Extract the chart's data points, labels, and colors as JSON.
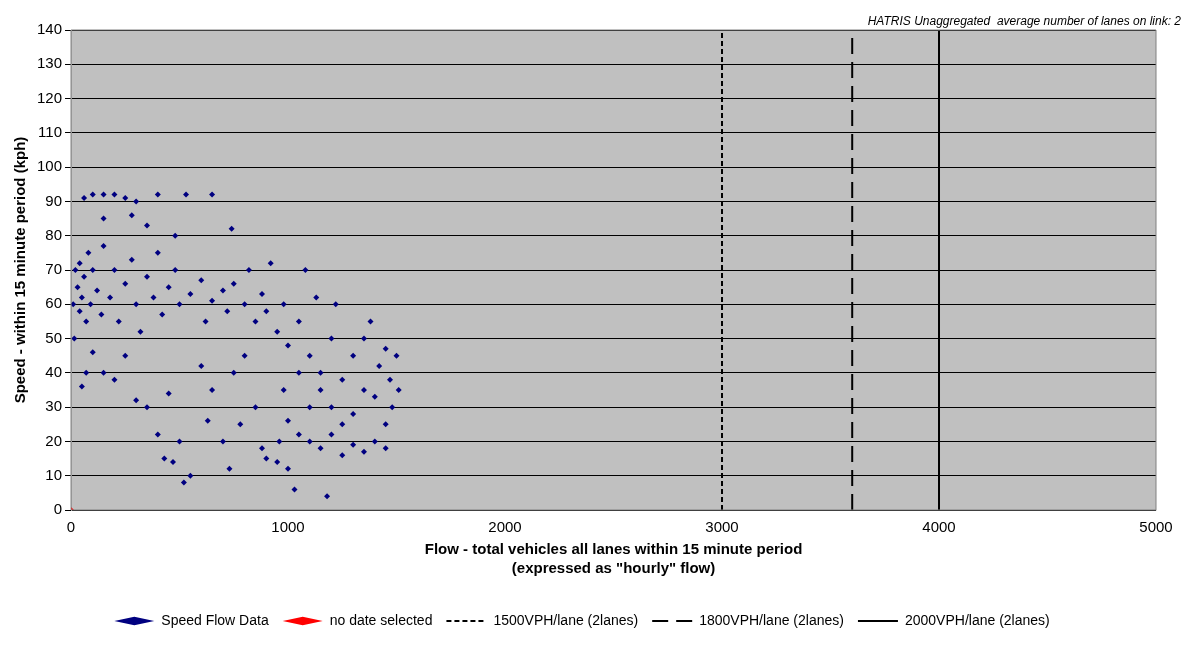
{
  "chart_data": {
    "type": "scatter",
    "xlabel": "Flow - total vehicles all lanes within 15 minute period (expressed as \"hourly\" flow)",
    "ylabel": "Speed - within 15 minute period (kph)",
    "annotations": [
      "HATRIS Unaggregated  average number of lanes on link: 2"
    ],
    "xlim": [
      0,
      5000
    ],
    "xticks": [
      0,
      1000,
      2000,
      3000,
      4000,
      5000
    ],
    "ylim": [
      0,
      140
    ],
    "yticks": [
      0,
      10,
      20,
      30,
      40,
      50,
      60,
      70,
      80,
      90,
      100,
      110,
      120,
      130,
      140
    ],
    "grid": "y",
    "legend": "bottom",
    "series": [
      {
        "name": "Speed Flow Data",
        "marker": "diamond",
        "color": "#000080",
        "x": [
          10,
          20,
          15,
          30,
          40,
          40,
          50,
          60,
          70,
          80,
          90,
          100,
          120,
          140,
          150,
          180,
          200,
          220,
          250,
          280,
          300,
          320,
          350,
          380,
          400,
          420,
          450,
          480,
          500,
          550,
          600,
          620,
          650,
          700,
          720,
          750,
          800,
          820,
          850,
          880,
          900,
          920,
          950,
          980,
          1000,
          1050,
          1080,
          1100,
          1130,
          1150,
          1200,
          1220,
          1250,
          1300,
          1350,
          1380,
          1420,
          1450,
          1470,
          1500,
          1510,
          1480,
          1450,
          1400,
          1350,
          1300,
          1250,
          1200,
          1150,
          1100,
          1050,
          1000,
          980,
          960,
          950,
          1000,
          1030,
          1180,
          1100,
          1200,
          1300,
          1400,
          1050,
          1150,
          1250,
          1350,
          1450,
          60,
          100,
          150,
          200,
          250,
          300,
          400,
          530,
          650,
          740,
          150,
          280,
          350,
          480,
          50,
          70,
          100,
          150,
          200,
          300,
          350,
          400,
          430,
          470,
          500,
          520,
          550,
          630,
          700,
          730,
          780,
          850,
          880,
          900,
          600,
          650,
          800,
          750,
          250,
          450
        ],
        "values": [
          60,
          70,
          50,
          65,
          58,
          72,
          62,
          68,
          55,
          75,
          60,
          70,
          64,
          57,
          77,
          62,
          70,
          55,
          66,
          73,
          60,
          52,
          68,
          62,
          75,
          57,
          65,
          70,
          60,
          63,
          67,
          55,
          61,
          64,
          58,
          66,
          60,
          70,
          55,
          63,
          58,
          72,
          52,
          60,
          48,
          55,
          70,
          45,
          62,
          40,
          50,
          60,
          38,
          45,
          50,
          55,
          42,
          47,
          38,
          45,
          35,
          30,
          25,
          20,
          17,
          19,
          16,
          22,
          18,
          20,
          22,
          26,
          35,
          20,
          14,
          12,
          6,
          4,
          30,
          30,
          28,
          33,
          40,
          35,
          25,
          35,
          18,
          91,
          92,
          92,
          92,
          91,
          90,
          92,
          92,
          92,
          82,
          85,
          86,
          83,
          80,
          36,
          40,
          46,
          40,
          38,
          32,
          30,
          22,
          15,
          14,
          20,
          8,
          10,
          26,
          20,
          12,
          25,
          30,
          18,
          15,
          42,
          35,
          45,
          40,
          45,
          34
        ]
      },
      {
        "name": "no date selected",
        "marker": "diamond",
        "color": "#ff0000",
        "x": [
          0
        ],
        "values": [
          0
        ]
      },
      {
        "name": "1500VPH/lane (2lanes)",
        "type": "line",
        "line_style": "dotted",
        "color": "#000000",
        "x": [
          3000,
          3000
        ],
        "values": [
          0,
          140
        ]
      },
      {
        "name": "1800VPH/lane (2lanes)",
        "type": "line",
        "line_style": "dashed",
        "color": "#000000",
        "x": [
          3600,
          3600
        ],
        "values": [
          0,
          140
        ]
      },
      {
        "name": "2000VPH/lane (2lanes)",
        "type": "line",
        "line_style": "solid",
        "color": "#000000",
        "x": [
          4000,
          4000
        ],
        "values": [
          0,
          140
        ]
      }
    ]
  }
}
